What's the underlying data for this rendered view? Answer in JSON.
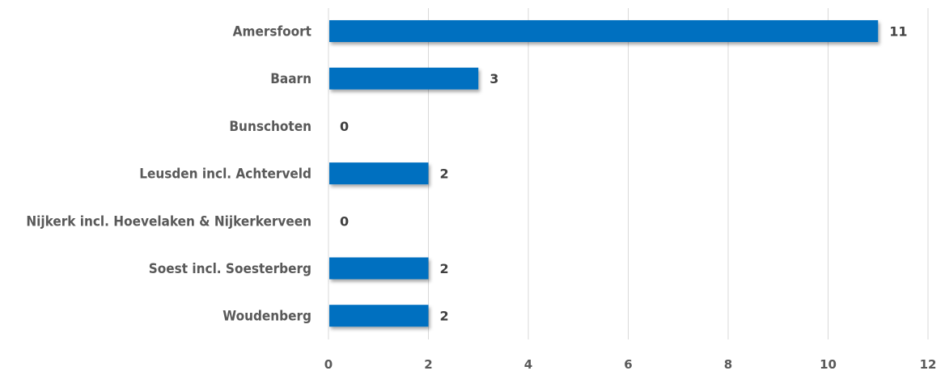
{
  "chart_data": {
    "type": "bar",
    "orientation": "horizontal",
    "categories": [
      "Amersfoort",
      "Baarn",
      "Bunschoten",
      "Leusden incl. Achterveld",
      "Nijkerk incl. Hoevelaken & Nijkerkerveen",
      "Soest incl. Soesterberg",
      "Woudenberg"
    ],
    "values": [
      11,
      3,
      0,
      2,
      0,
      2,
      2
    ],
    "x_ticks": [
      "0",
      "2",
      "4",
      "6",
      "8",
      "10",
      "12"
    ],
    "xlim": [
      0,
      12
    ],
    "grid": true,
    "data_labels": true,
    "bar_color": "#0070C0"
  }
}
